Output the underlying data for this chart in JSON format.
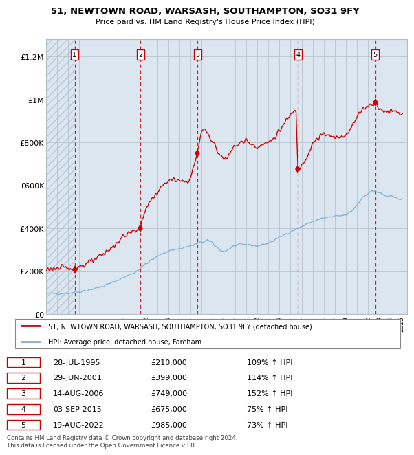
{
  "title": "51, NEWTOWN ROAD, WARSASH, SOUTHAMPTON, SO31 9FY",
  "subtitle": "Price paid vs. HM Land Registry's House Price Index (HPI)",
  "footer": "Contains HM Land Registry data © Crown copyright and database right 2024.\nThis data is licensed under the Open Government Licence v3.0.",
  "legend_house": "51, NEWTOWN ROAD, WARSASH, SOUTHAMPTON, SO31 9FY (detached house)",
  "legend_hpi": "HPI: Average price, detached house, Fareham",
  "house_color": "#cc0000",
  "hpi_color": "#7bafd4",
  "transactions": [
    {
      "num": 1,
      "date": "28-JUL-1995",
      "year": 1995.57,
      "price": 210000,
      "pct": "109%",
      "dir": "↑"
    },
    {
      "num": 2,
      "date": "29-JUN-2001",
      "year": 2001.49,
      "price": 399000,
      "pct": "114%",
      "dir": "↑"
    },
    {
      "num": 3,
      "date": "14-AUG-2006",
      "year": 2006.62,
      "price": 749000,
      "pct": "152%",
      "dir": "↑"
    },
    {
      "num": 4,
      "date": "03-SEP-2015",
      "year": 2015.67,
      "price": 675000,
      "pct": "75%",
      "dir": "↑"
    },
    {
      "num": 5,
      "date": "19-AUG-2022",
      "year": 2022.63,
      "price": 985000,
      "pct": "73%",
      "dir": "↑"
    }
  ],
  "xlim": [
    1993.0,
    2025.5
  ],
  "ylim": [
    0,
    1280000
  ],
  "yticks": [
    0,
    200000,
    400000,
    600000,
    800000,
    1000000,
    1200000
  ],
  "ytick_labels": [
    "£0",
    "£200K",
    "£400K",
    "£600K",
    "£800K",
    "£1M",
    "£1.2M"
  ],
  "xticks": [
    1993,
    1994,
    1995,
    1996,
    1997,
    1998,
    1999,
    2000,
    2001,
    2002,
    2003,
    2004,
    2005,
    2006,
    2007,
    2008,
    2009,
    2010,
    2011,
    2012,
    2013,
    2014,
    2015,
    2016,
    2017,
    2018,
    2019,
    2020,
    2021,
    2022,
    2023,
    2024,
    2025
  ],
  "bg_color": "#dce6f1",
  "hatch_color": "#b8c8d8",
  "grid_color": "#b0bec8"
}
